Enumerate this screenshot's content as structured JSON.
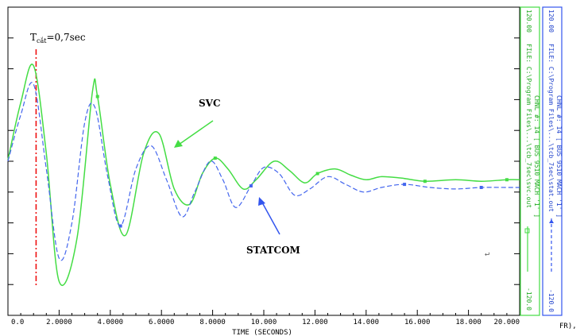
{
  "chart_data": {
    "type": "line",
    "xlabel": "TIME  (SECONDS)",
    "x_tick_labels": [
      "0.0",
      "2.0000",
      "4.0000",
      "6.0000",
      "8.0000",
      "10.000",
      "12.000",
      "14.000",
      "16.000",
      "18.000",
      "20.000"
    ],
    "xlim": [
      0,
      20
    ],
    "ylim": [
      -1,
      1
    ],
    "grid": false,
    "fault_marker": {
      "x": 1.1,
      "label_main": "T",
      "label_sub": "cắt",
      "label_rest": "=0,7sec"
    },
    "annotations": [
      {
        "text": "SVC",
        "target_series": "svc"
      },
      {
        "text": "STATCOM",
        "target_series": "statcom"
      }
    ],
    "series": [
      {
        "key": "svc",
        "color": "#44dd44",
        "style": "solid",
        "x": [
          0,
          0.5,
          1.0,
          1.5,
          2.0,
          2.7,
          3.3,
          3.5,
          4.0,
          4.6,
          5.3,
          5.9,
          6.5,
          7.1,
          7.6,
          8.1,
          8.6,
          9.2,
          9.7,
          10.4,
          11.0,
          11.6,
          12.1,
          12.8,
          13.4,
          14.0,
          14.6,
          15.4,
          16.3,
          17.5,
          18.5,
          19.5,
          20.0
        ],
        "y": [
          0.01,
          0.38,
          0.62,
          0.05,
          -0.78,
          -0.5,
          0.45,
          0.42,
          -0.15,
          -0.48,
          0.05,
          0.18,
          -0.18,
          -0.28,
          -0.08,
          0.02,
          -0.05,
          -0.18,
          -0.12,
          0.0,
          -0.06,
          -0.14,
          -0.08,
          -0.05,
          -0.09,
          -0.12,
          -0.1,
          -0.11,
          -0.13,
          -0.12,
          -0.13,
          -0.12,
          -0.12
        ]
      },
      {
        "key": "statcom",
        "color": "#4466ee",
        "style": "dashed",
        "x": [
          0,
          0.5,
          1.0,
          1.5,
          2.0,
          2.5,
          3.0,
          3.4,
          3.9,
          4.4,
          5.0,
          5.6,
          6.2,
          6.8,
          7.3,
          7.9,
          8.4,
          8.9,
          9.5,
          10.0,
          10.6,
          11.2,
          11.8,
          12.5,
          13.2,
          13.9,
          14.6,
          15.5,
          16.5,
          17.5,
          18.5,
          19.5,
          20.0
        ],
        "y": [
          0.0,
          0.3,
          0.5,
          -0.05,
          -0.63,
          -0.4,
          0.25,
          0.35,
          -0.1,
          -0.42,
          -0.05,
          0.1,
          -0.12,
          -0.36,
          -0.2,
          0.0,
          -0.12,
          -0.3,
          -0.16,
          -0.04,
          -0.08,
          -0.22,
          -0.18,
          -0.1,
          -0.15,
          -0.2,
          -0.17,
          -0.15,
          -0.17,
          -0.18,
          -0.17,
          -0.17,
          -0.17
        ]
      }
    ]
  },
  "right_panel": {
    "green_top": "120.00",
    "green_bottom": "-120.0",
    "green_caption_1": "FILE: C:\\Program Files\\...\\tcb_7sec\\svc.out",
    "green_caption_2": "CHNL #: 14  [ BUS 9510 MACH '1' ]",
    "blue_top": "120.00",
    "blue_bottom": "-120.0",
    "blue_caption_1": "FILE: C:\\Program Files\\...\\tcb_7sec\\stat.out",
    "blue_caption_2": "CHNL #: 14  [ BUS 9510 MACH '1' ]",
    "corner_text": "FR),"
  }
}
